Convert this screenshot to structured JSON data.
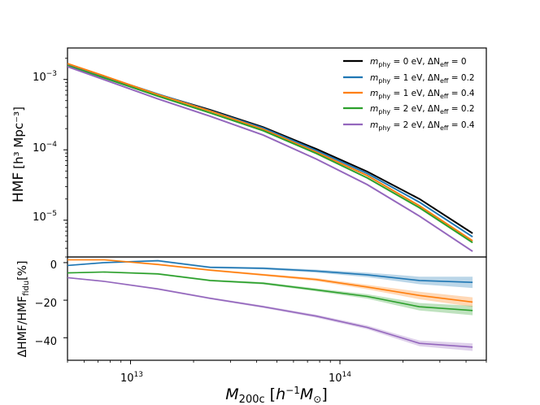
{
  "chart_data": [
    {
      "type": "line",
      "panel": "top",
      "ylabel_text": "HMF",
      "ylabel_units": "[h³ Mpc⁻³]",
      "yscale": "log",
      "ylim": [
        3e-06,
        0.0028
      ],
      "xscale": "log",
      "xlim": [
        5000000000000,
        500000000000000
      ],
      "y_ticks": [
        0.001,
        0.0001,
        1e-05
      ],
      "y_tick_labels": [
        {
          "base": "10",
          "exp": "−3"
        },
        {
          "base": "10",
          "exp": "−4"
        },
        {
          "base": "10",
          "exp": "−5"
        }
      ],
      "legend_position": "top-right",
      "x": [
        5000000000000,
        7500000000000,
        13500000000000,
        24000000000000,
        43000000000000,
        77000000000000,
        135000000000000,
        240000000000000,
        430000000000000
      ],
      "series": [
        {
          "name": "m_phy = 0 eV, ΔN_eff = 0",
          "legend": {
            "sym": "m",
            "sub": "phy",
            "val": " = 0 eV, ΔN",
            "sub2": "eff",
            "val2": " = 0"
          },
          "color": "#000000",
          "values": [
            0.00165,
            0.0011,
            0.000615,
            0.00037,
            0.00021,
            0.000103,
            4.9e-05,
            2e-05,
            6.5e-06
          ]
        },
        {
          "name": "m_phy = 1 eV, ΔN_eff = 0.2",
          "legend": {
            "sym": "m",
            "sub": "phy",
            "val": " = 1 eV, ΔN",
            "sub2": "eff",
            "val2": " = 0.2"
          },
          "color": "#1f77b4",
          "values": [
            0.00162,
            0.0011,
            0.00062,
            0.00036,
            0.000204,
            9.8e-05,
            4.6e-05,
            1.8e-05,
            5.8e-06
          ]
        },
        {
          "name": "m_phy = 1 eV, ΔN_eff = 0.4",
          "legend": {
            "sym": "m",
            "sub": "phy",
            "val": " = 1 eV, ΔN",
            "sub2": "eff",
            "val2": " = 0.4"
          },
          "color": "#ff7f0e",
          "values": [
            0.00168,
            0.00112,
            0.00061,
            0.000355,
            0.000195,
            9.3e-05,
            4.3e-05,
            1.6e-05,
            5.1e-06
          ]
        },
        {
          "name": "m_phy = 2 eV, ΔN_eff = 0.2",
          "legend": {
            "sym": "m",
            "sub": "phy",
            "val": " = 2 eV, ΔN",
            "sub2": "eff",
            "val2": " = 0.2"
          },
          "color": "#2ca02c",
          "values": [
            0.00157,
            0.00105,
            0.00058,
            0.000335,
            0.000187,
            8.9e-05,
            4e-05,
            1.5e-05,
            4.8e-06
          ]
        },
        {
          "name": "m_phy = 2 eV, ΔN_eff = 0.4",
          "legend": {
            "sym": "m",
            "sub": "phy",
            "val": " = 2 eV, ΔN",
            "sub2": "eff",
            "val2": " = 0.4"
          },
          "color": "#9467bd",
          "values": [
            0.00152,
            0.00099,
            0.00053,
            0.0003,
            0.000162,
            7.4e-05,
            3.2e-05,
            1.14e-05,
            3.6e-06
          ]
        }
      ]
    },
    {
      "type": "line",
      "panel": "bottom",
      "ylabel_text": "ΔHMF/HMF",
      "ylabel_sub": "fidu",
      "ylabel_units": "[%]",
      "ylim": [
        -52,
        3
      ],
      "xscale": "log",
      "xlim": [
        5000000000000,
        500000000000000
      ],
      "y_ticks": [
        0,
        -20,
        -40
      ],
      "y_tick_labels": [
        "0",
        "−20",
        "−40"
      ],
      "x_ticks": [
        10000000000000,
        100000000000000
      ],
      "x_tick_labels": [
        {
          "base": "10",
          "exp": "13"
        },
        {
          "base": "10",
          "exp": "14"
        }
      ],
      "xlabel": {
        "sym": "M",
        "sub": "200c",
        "units_open": " [",
        "h": "h",
        "exp": "−1",
        "m": "M",
        "sub2": "⊙",
        "units_close": "]"
      },
      "x": [
        5000000000000,
        7500000000000,
        13500000000000,
        24000000000000,
        43000000000000,
        77000000000000,
        135000000000000,
        240000000000000,
        430000000000000
      ],
      "series": [
        {
          "name": "m_phy = 1 eV, ΔN_eff = 0.2",
          "color": "#1f77b4",
          "values": [
            -1.5,
            0.0,
            1.0,
            -2.5,
            -3.0,
            -4.5,
            -6.5,
            -9.5,
            -10.5
          ],
          "band": [
            0.3,
            0.4,
            0.5,
            0.5,
            0.6,
            0.8,
            1.2,
            2.0,
            3.0
          ]
        },
        {
          "name": "m_phy = 1 eV, ΔN_eff = 0.4",
          "color": "#ff7f0e",
          "values": [
            1.5,
            1.5,
            -1.0,
            -4.0,
            -6.5,
            -9.0,
            -13.0,
            -17.5,
            -21.0
          ],
          "band": [
            0.3,
            0.4,
            0.5,
            0.5,
            0.6,
            0.8,
            1.2,
            2.0,
            2.5
          ]
        },
        {
          "name": "m_phy = 2 eV, ΔN_eff = 0.2",
          "color": "#2ca02c",
          "values": [
            -5.5,
            -5.0,
            -6.0,
            -9.5,
            -11.0,
            -14.5,
            -18.0,
            -23.5,
            -25.5
          ],
          "band": [
            0.3,
            0.4,
            0.5,
            0.5,
            0.6,
            0.8,
            1.2,
            2.0,
            2.5
          ]
        },
        {
          "name": "m_phy = 2 eV, ΔN_eff = 0.4",
          "color": "#9467bd",
          "values": [
            -8.0,
            -10.0,
            -14.0,
            -19.0,
            -23.5,
            -28.5,
            -34.5,
            -43.0,
            -45.0
          ],
          "band": [
            0.3,
            0.4,
            0.5,
            0.5,
            0.6,
            0.8,
            1.0,
            1.5,
            2.0
          ]
        }
      ]
    }
  ]
}
